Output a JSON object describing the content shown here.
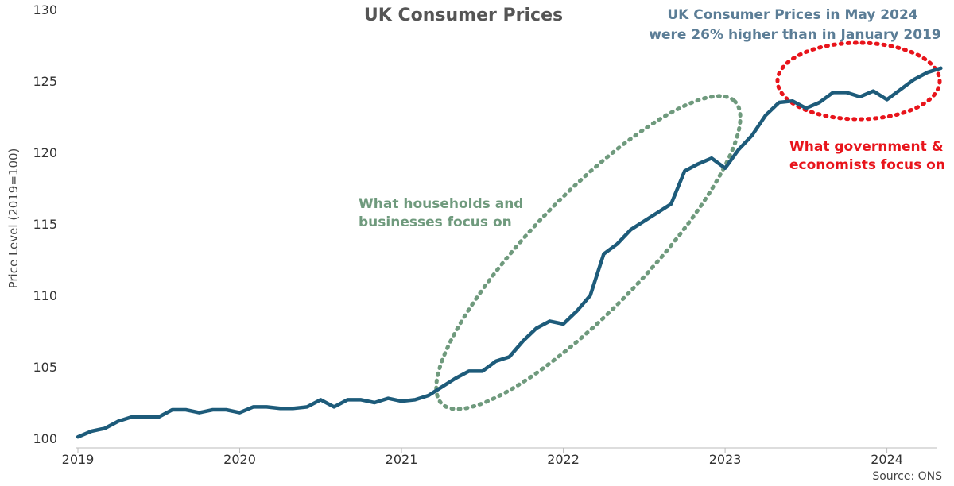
{
  "chart_data": {
    "type": "line",
    "title": "UK Consumer Prices",
    "xlabel": "",
    "ylabel": "Price Level (2019=100)",
    "ylim": [
      100,
      130
    ],
    "yticks": [
      "100",
      "105",
      "110",
      "115",
      "120",
      "125",
      "130"
    ],
    "xticks": [
      "2019",
      "2020",
      "2021",
      "2022",
      "2023",
      "2024"
    ],
    "x_start": "2019-01",
    "x_end": "2024-05",
    "grid": false,
    "colors": {
      "line": "#1d5b7a",
      "green": "#6f9a7d",
      "red": "#e8141b",
      "blue_text": "#5b7d96"
    },
    "series": [
      {
        "name": "",
        "values": [
          100.1,
          100.5,
          100.7,
          101.2,
          101.5,
          101.5,
          101.5,
          102.0,
          102.0,
          101.8,
          102.0,
          102.0,
          101.8,
          102.2,
          102.2,
          102.1,
          102.1,
          102.2,
          102.7,
          102.2,
          102.7,
          102.7,
          102.5,
          102.8,
          102.6,
          102.7,
          103.0,
          103.6,
          104.2,
          104.7,
          104.7,
          105.4,
          105.7,
          106.8,
          107.7,
          108.2,
          108.0,
          108.9,
          110.0,
          112.9,
          113.6,
          114.6,
          115.2,
          115.8,
          116.4,
          118.7,
          119.2,
          119.6,
          118.9,
          120.2,
          121.2,
          122.6,
          123.5,
          123.6,
          123.1,
          123.5,
          124.2,
          124.2,
          123.9,
          124.3,
          123.7,
          124.4,
          125.1,
          125.6,
          125.9
        ]
      }
    ],
    "annotations": {
      "blue_line1": "UK Consumer Prices in May 2024",
      "blue_line2": "were 26% higher than in January 2019",
      "green_line1": "What households and",
      "green_line2": "businesses focus on",
      "red_line1": "What government &",
      "red_line2": "economists focus on"
    },
    "source": "Source: ONS"
  }
}
